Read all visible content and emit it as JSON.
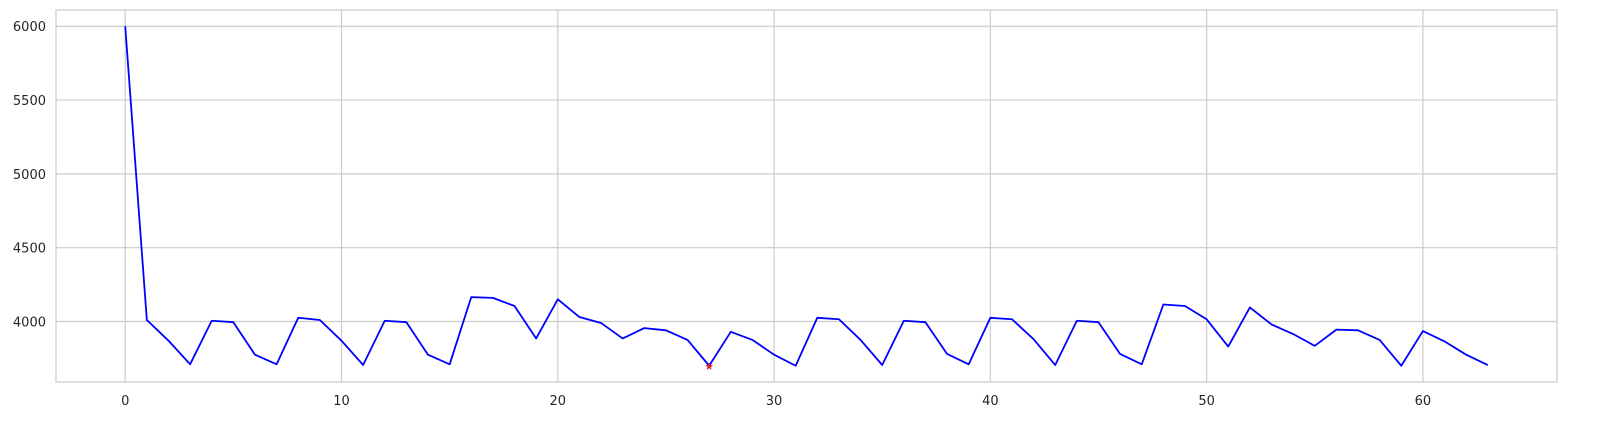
{
  "chart_data": {
    "type": "line",
    "title": "",
    "xlabel": "",
    "ylabel": "",
    "xlim": [
      -3.2,
      66.2
    ],
    "ylim": [
      3590,
      6110
    ],
    "x_ticks": [
      0,
      10,
      20,
      30,
      40,
      50,
      60
    ],
    "y_ticks": [
      4000,
      4500,
      5000,
      5500,
      6000
    ],
    "x_tick_labels": [
      "0",
      "10",
      "20",
      "30",
      "40",
      "50",
      "60"
    ],
    "y_tick_labels": [
      "4000",
      "4500",
      "5000",
      "5500",
      "6000"
    ],
    "grid": true,
    "legend": "none",
    "series": [
      {
        "color": "#0000ff",
        "x": [
          0,
          1,
          2,
          3,
          4,
          5,
          6,
          7,
          8,
          9,
          10,
          11,
          12,
          13,
          14,
          15,
          16,
          17,
          18,
          19,
          20,
          21,
          22,
          23,
          24,
          25,
          26,
          27,
          28,
          29,
          30,
          31,
          32,
          33,
          34,
          35,
          36,
          37,
          38,
          39,
          40,
          41,
          42,
          43,
          44,
          45,
          46,
          47,
          48,
          49,
          50,
          51,
          52,
          53,
          54,
          55,
          56,
          57,
          58,
          59,
          60,
          61,
          62,
          63
        ],
        "y": [
          6000,
          4010,
          3870,
          3710,
          4005,
          3995,
          3775,
          3710,
          4025,
          4010,
          3870,
          3705,
          4005,
          3995,
          3775,
          3710,
          4165,
          4160,
          4105,
          3885,
          4150,
          4030,
          3990,
          3885,
          3955,
          3940,
          3875,
          3700,
          3930,
          3875,
          3775,
          3700,
          4025,
          4015,
          3875,
          3705,
          4005,
          3995,
          3780,
          3710,
          4025,
          4015,
          3880,
          3705,
          4005,
          3995,
          3780,
          3710,
          4115,
          4105,
          4015,
          3830,
          4095,
          3980,
          3915,
          3835,
          3945,
          3940,
          3875,
          3700,
          3935,
          3865,
          3775,
          3705
        ]
      }
    ],
    "markers": [
      {
        "x": 27,
        "y": 3695,
        "shape": "star",
        "color": "#d62728"
      }
    ]
  }
}
